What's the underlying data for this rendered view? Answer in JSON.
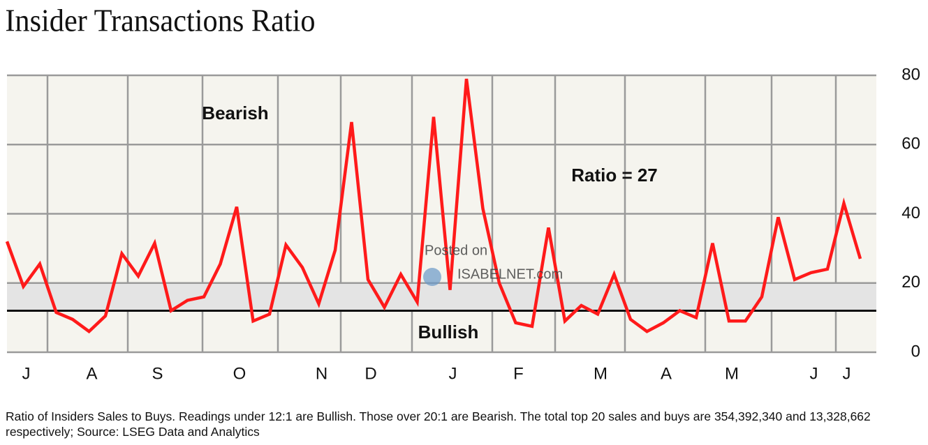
{
  "chart_data": {
    "type": "line",
    "title": "Insider Transactions Ratio",
    "annotations": [
      "Bearish",
      "Ratio = 27",
      "Bullish"
    ],
    "watermark": [
      "Posted on",
      "ISABELNET.com"
    ],
    "note": "Ratio of Insiders Sales to Buys. Readings under 12:1 are Bullish. Those over 20:1 are Bearish. The total top 20 sales and buys are 354,392,340 and 13,328,662 respectively; Source: LSEG Data and Analytics",
    "categories": [
      null,
      "J",
      null,
      null,
      null,
      "A",
      null,
      null,
      null,
      "S",
      null,
      null,
      null,
      null,
      "O",
      null,
      null,
      null,
      null,
      "N",
      null,
      null,
      "D",
      null,
      null,
      null,
      null,
      "J",
      null,
      null,
      null,
      "F",
      null,
      null,
      null,
      null,
      "M",
      null,
      null,
      null,
      "A",
      null,
      null,
      null,
      "M",
      null,
      null,
      null,
      null,
      "J",
      null,
      "J",
      null
    ],
    "series": [
      {
        "name": "Ratio",
        "color": "#ff1a1a",
        "values": [
          32,
          19,
          25.5,
          11.5,
          9.5,
          6,
          10.5,
          28.5,
          22,
          31.5,
          12,
          15,
          16,
          25.5,
          42,
          9,
          11,
          31,
          24.5,
          14,
          29.5,
          66.5,
          21,
          13,
          22.5,
          14.5,
          68,
          18,
          79,
          41.5,
          20,
          8.5,
          7.5,
          36,
          9,
          13.5,
          11,
          22.5,
          9.5,
          6,
          8.5,
          12,
          10,
          31.5,
          9,
          9,
          16,
          39,
          21,
          23,
          24,
          43,
          27
        ]
      }
    ],
    "ylim": [
      0,
      80
    ],
    "yticks": [
      0,
      20,
      40,
      60,
      80
    ],
    "grid": true,
    "band": [
      12,
      20
    ],
    "reference_line": 12
  }
}
